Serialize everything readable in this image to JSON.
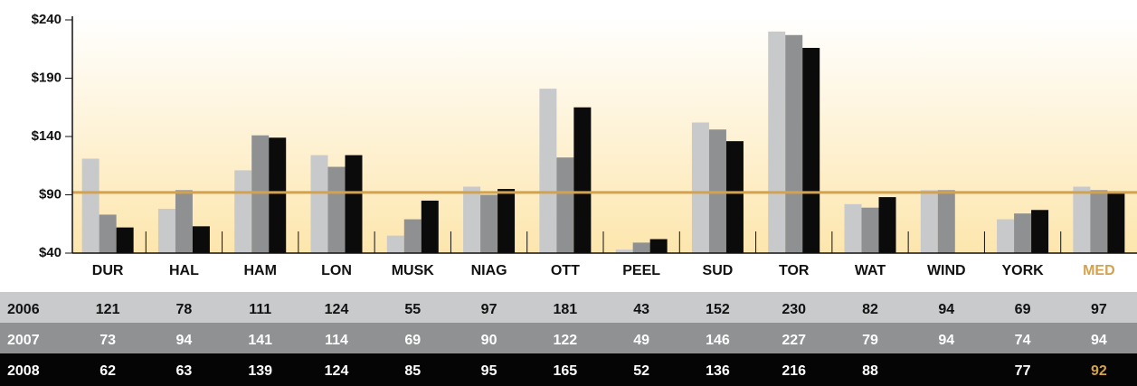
{
  "chart_data": {
    "type": "bar",
    "categories": [
      "DUR",
      "HAL",
      "HAM",
      "LON",
      "MUSK",
      "NIAG",
      "OTT",
      "PEEL",
      "SUD",
      "TOR",
      "WAT",
      "WIND",
      "YORK",
      "MED"
    ],
    "series": [
      {
        "name": "2006",
        "color": "#c8c9cb",
        "values": [
          121,
          78,
          111,
          124,
          55,
          97,
          181,
          43,
          152,
          230,
          82,
          94,
          69,
          97
        ]
      },
      {
        "name": "2007",
        "color": "#8e9091",
        "values": [
          73,
          94,
          141,
          114,
          69,
          90,
          122,
          49,
          146,
          227,
          79,
          94,
          74,
          94
        ]
      },
      {
        "name": "2008",
        "color": "#0b0b0b",
        "values": [
          62,
          63,
          139,
          124,
          85,
          95,
          165,
          52,
          136,
          216,
          88,
          null,
          77,
          92
        ]
      }
    ],
    "ylim": [
      40,
      240
    ],
    "yticks": [
      {
        "value": 40,
        "label": "$40"
      },
      {
        "value": 90,
        "label": "$90"
      },
      {
        "value": 140,
        "label": "$140"
      },
      {
        "value": 190,
        "label": "$190"
      },
      {
        "value": 240,
        "label": "$240"
      }
    ],
    "median_color": "#d4a24c"
  }
}
